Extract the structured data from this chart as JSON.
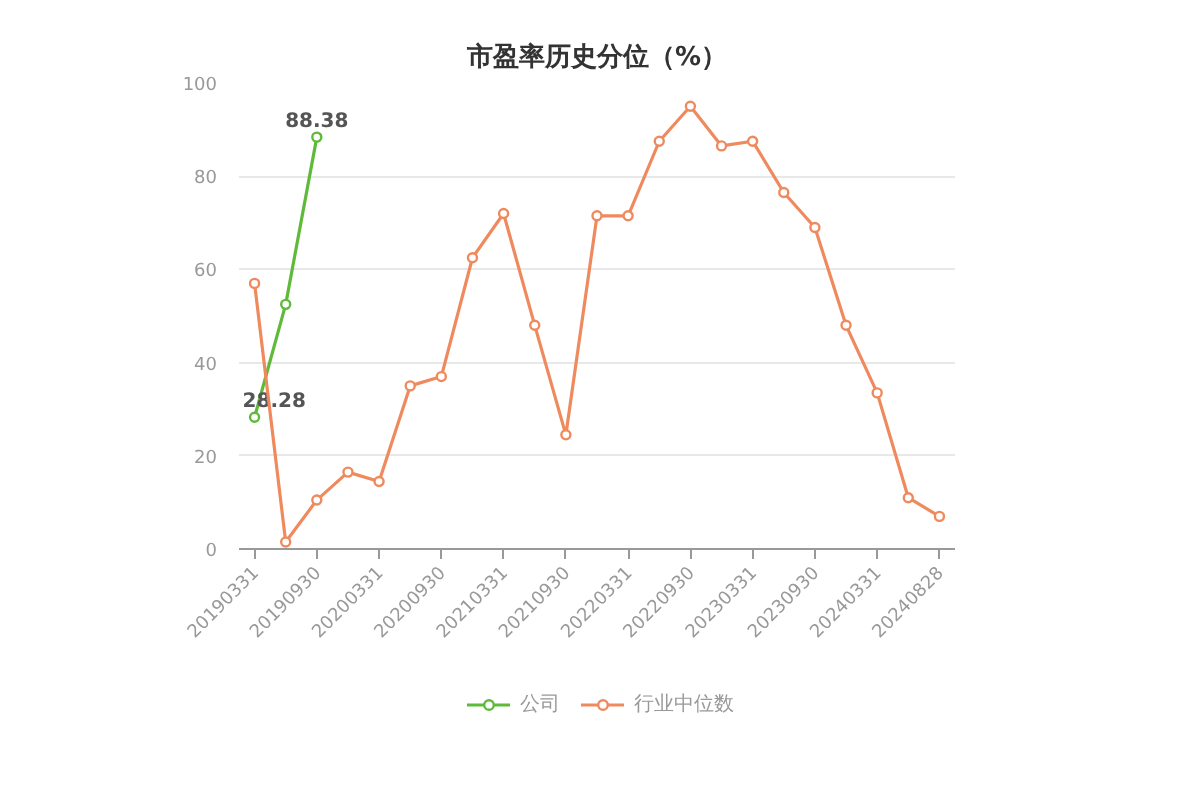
{
  "chart_data": {
    "type": "line",
    "title": "市盈率历史分位（%）",
    "categories": [
      "20190331",
      null,
      "20190930",
      null,
      "20200331",
      null,
      "20200930",
      null,
      "20210331",
      null,
      "20210930",
      null,
      "20220331",
      null,
      "20220930",
      null,
      "20230331",
      null,
      "20230930",
      null,
      "20240331",
      null,
      "20240828"
    ],
    "series": [
      {
        "name": "公司",
        "color": "#5fba3a",
        "values": [
          28.28,
          52.5,
          88.38,
          null,
          null,
          null,
          null,
          null,
          null,
          null,
          null,
          null,
          null,
          null,
          null,
          null,
          null,
          null,
          null,
          null,
          null,
          null,
          null
        ],
        "value_labels": [
          "28.28",
          null,
          "88.38",
          null,
          null,
          null,
          null,
          null,
          null,
          null,
          null,
          null,
          null,
          null,
          null,
          null,
          null,
          null,
          null,
          null,
          null,
          null,
          null
        ]
      },
      {
        "name": "行业中位数",
        "color": "#ef8a5e",
        "values": [
          57,
          1.5,
          10.5,
          16.5,
          14.5,
          35,
          37,
          62.5,
          72,
          48,
          24.5,
          71.5,
          71.5,
          87.5,
          95,
          86.5,
          87.5,
          76.5,
          69,
          48,
          33.5,
          11,
          7
        ]
      }
    ],
    "ylim": [
      0,
      100
    ],
    "yticks": [
      0,
      20,
      40,
      60,
      80,
      100
    ],
    "grid": "y",
    "legend": "bottom",
    "marker": "circle",
    "line_style": "solid"
  }
}
